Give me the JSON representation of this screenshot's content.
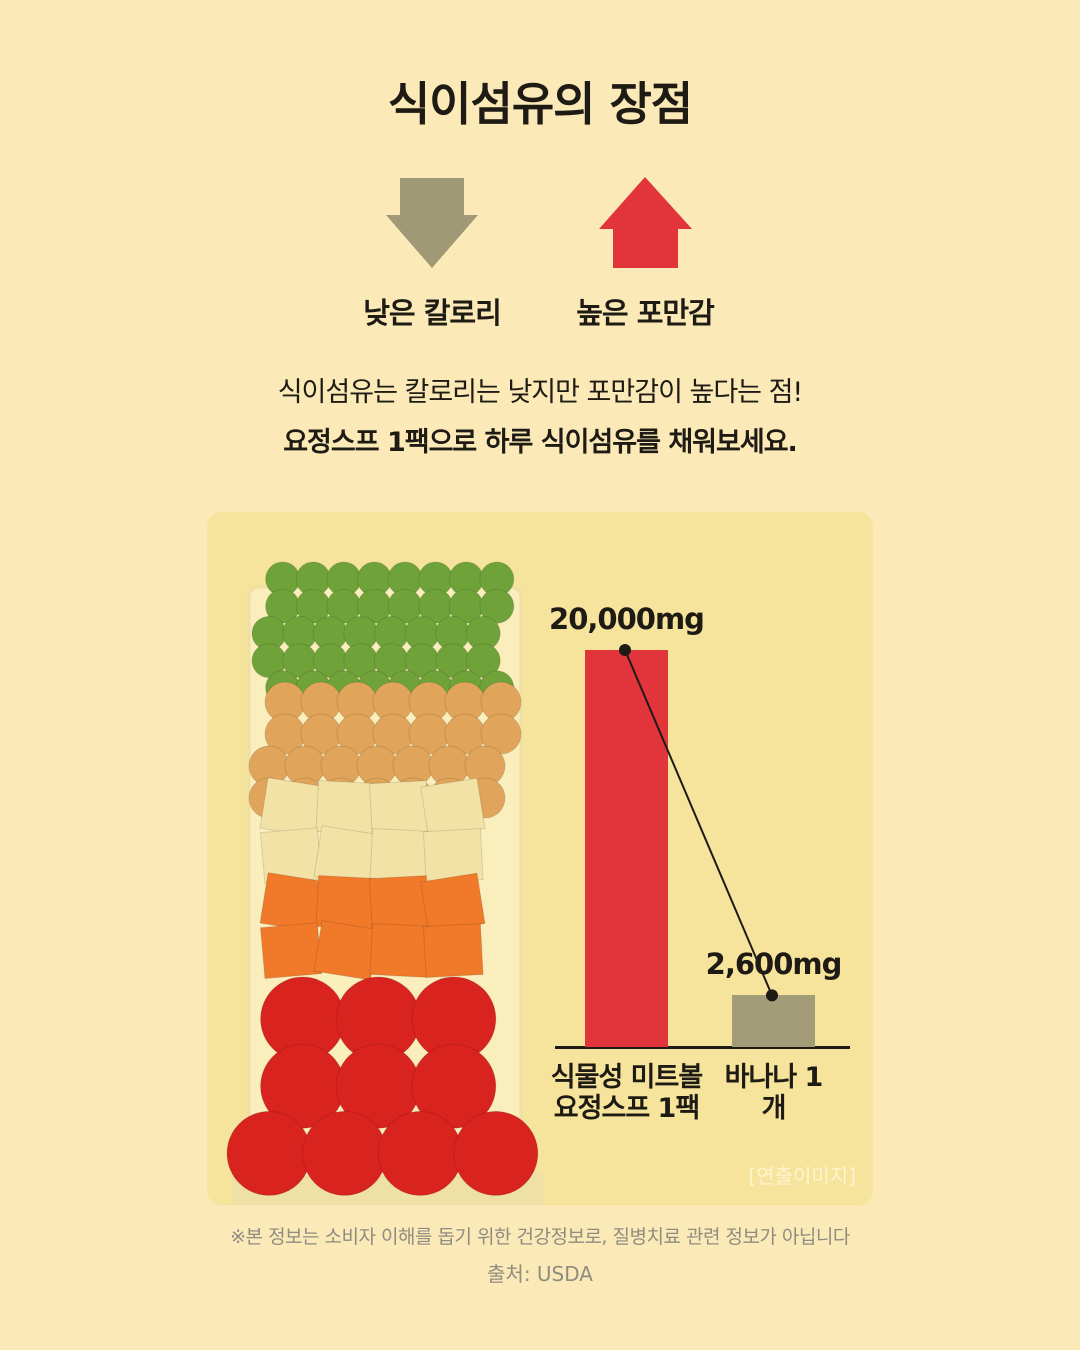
{
  "header": {
    "title": "식이섬유의 장점"
  },
  "benefits": [
    {
      "label": "낮은 칼로리"
    },
    {
      "label": "높은 포만감"
    }
  ],
  "description": [
    "식이섬유는 칼로리는 낮지만 포만감이 높다는 점!",
    "요정스프 1팩으로 하루 식이섬유를 채워보세요."
  ],
  "chart_data": {
    "type": "bar",
    "categories": [
      "식물성 미트볼 요정스프 1팩",
      "바나나 1개"
    ],
    "values": [
      20000,
      2600
    ],
    "value_labels": [
      "20,000mg",
      "2,600mg"
    ],
    "colors": [
      "#e2343b",
      "#a29d78"
    ]
  },
  "panel_note": "[연출이미지]",
  "footnote": "※본 정보는 소비자 이해를 돕기 위한 건강정보로, 질병치료 관련 정보가 아닙니다",
  "source": "출처: USDA"
}
